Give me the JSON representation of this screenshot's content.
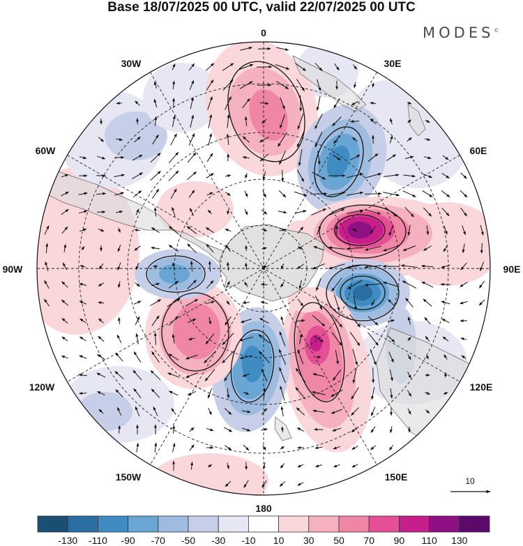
{
  "title": "Base 18/07/2025 00 UTC, valid 22/07/2025 00 UTC",
  "brand": "MODES",
  "brand_mark": "©",
  "longitude_labels": {
    "lon_0": "0",
    "lon_30E": "30E",
    "lon_60E": "60E",
    "lon_90E": "90E",
    "lon_120E": "120E",
    "lon_150E": "150E",
    "lon_180": "180",
    "lon_150W": "150W",
    "lon_120W": "120W",
    "lon_90W": "90W",
    "lon_60W": "60W",
    "lon_30W": "30W"
  },
  "vector_reference": {
    "value": "10"
  },
  "colorbar": {
    "labels": [
      "-130",
      "-110",
      "-90",
      "-70",
      "-50",
      "-30",
      "-10",
      "10",
      "30",
      "50",
      "70",
      "90",
      "110",
      "130"
    ],
    "colors": [
      "#1b4e73",
      "#2a6ea3",
      "#3f8cc2",
      "#69a6d3",
      "#9ebbe0",
      "#c6cfe7",
      "#e6e7f3",
      "#ffffff",
      "#fad7db",
      "#f5b1bf",
      "#ef86a5",
      "#e54f95",
      "#c61f8c",
      "#8f0f84",
      "#5b0a6b"
    ]
  },
  "anomaly_centers": [
    {
      "sign": "negative",
      "level": "-90",
      "color": "#3f8cc2"
    },
    {
      "sign": "positive",
      "level": "110",
      "color": "#8f0f84"
    },
    {
      "sign": "negative",
      "level": "-110",
      "color": "#2a6ea3"
    },
    {
      "sign": "positive",
      "level": "90",
      "color": "#c61f8c"
    },
    {
      "sign": "negative",
      "level": "-90",
      "color": "#3f8cc2"
    },
    {
      "sign": "positive",
      "level": "70",
      "color": "#ef86a5"
    },
    {
      "sign": "negative",
      "level": "-70",
      "color": "#69a6d3"
    },
    {
      "sign": "positive",
      "level": "50",
      "color": "#f5b1bf"
    },
    {
      "sign": "positive",
      "level": "30",
      "color": "#fad7db"
    },
    {
      "sign": "negative",
      "level": "-30",
      "color": "#c6cfe7"
    }
  ]
}
